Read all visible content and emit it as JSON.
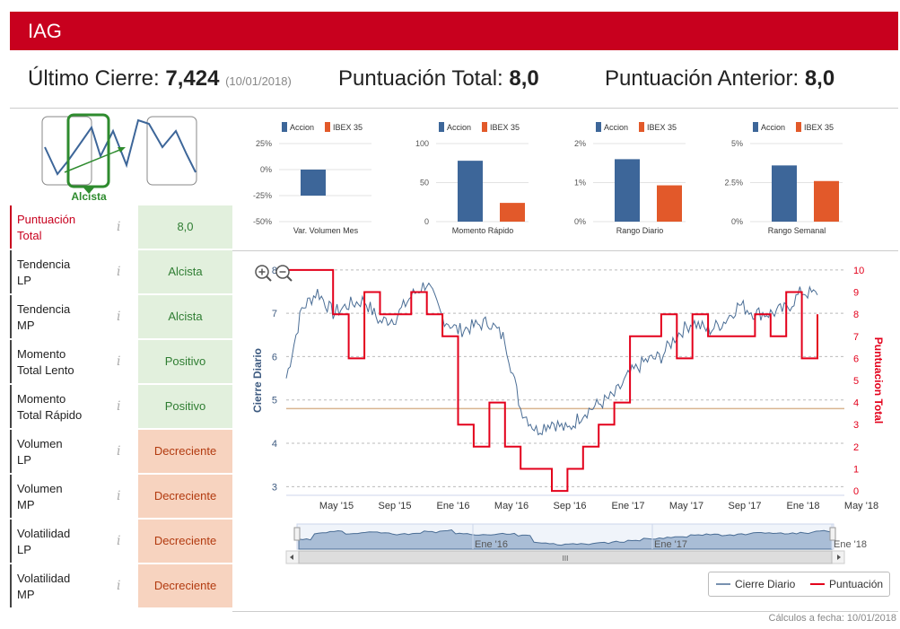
{
  "header": {
    "title": "IAG"
  },
  "summary": {
    "last_close_label": "Último Cierre:",
    "last_close_value": "7,424",
    "last_close_date": "(10/01/2018)",
    "total_score_label": "Puntuación Total:",
    "total_score_value": "8,0",
    "prev_score_label": "Puntuación Anterior:",
    "prev_score_value": "8,0"
  },
  "trend": {
    "label": "Alcista"
  },
  "rows": [
    {
      "label1": "Puntuación",
      "label2": "Total",
      "value": "8,0",
      "info": "i"
    },
    {
      "label1": "Tendencia",
      "label2": "LP",
      "value": "Alcista",
      "info": "i"
    },
    {
      "label1": "Tendencia",
      "label2": "MP",
      "value": "Alcista",
      "info": "i"
    },
    {
      "label1": "Momento",
      "label2": "Total Lento",
      "value": "Positivo",
      "info": "i"
    },
    {
      "label1": "Momento",
      "label2": "Total Rápido",
      "value": "Positivo",
      "info": "i"
    },
    {
      "label1": "Volumen",
      "label2": "LP",
      "value": "Decreciente",
      "info": "i"
    },
    {
      "label1": "Volumen",
      "label2": "MP",
      "value": "Decreciente",
      "info": "i"
    },
    {
      "label1": "Volatilidad",
      "label2": "LP",
      "value": "Decreciente",
      "info": "i"
    },
    {
      "label1": "Volatilidad",
      "label2": "MP",
      "value": "Decreciente",
      "info": "i"
    }
  ],
  "colors": {
    "accion": "#3d6699",
    "ibex": "#e2592a",
    "brand": "#c8001e",
    "price": "#4a6d95",
    "score": "#e3001b",
    "threshold": "#d9b48f"
  },
  "chart_data": [
    {
      "type": "bar",
      "title": "Var. Volumen Mes",
      "legend": [
        "Accion",
        "IBEX 35"
      ],
      "series": [
        {
          "name": "Accion",
          "values": [
            -25
          ]
        },
        {
          "name": "IBEX 35",
          "values": [
            null
          ]
        }
      ],
      "yticks": [
        "25%",
        "0%",
        "-25%",
        "-50%"
      ],
      "ylim": [
        -50,
        25
      ]
    },
    {
      "type": "bar",
      "title": "Momento Rápido",
      "legend": [
        "Accion",
        "IBEX 35"
      ],
      "series": [
        {
          "name": "Accion",
          "values": [
            78
          ]
        },
        {
          "name": "IBEX 35",
          "values": [
            24
          ]
        }
      ],
      "yticks": [
        "100",
        "50",
        "0"
      ],
      "ylim": [
        0,
        100
      ]
    },
    {
      "type": "bar",
      "title": "Rango Diario",
      "legend": [
        "Accion",
        "IBEX 35"
      ],
      "series": [
        {
          "name": "Accion",
          "values": [
            1.6
          ]
        },
        {
          "name": "IBEX 35",
          "values": [
            0.93
          ]
        }
      ],
      "yticks": [
        "2%",
        "1%",
        "0%"
      ],
      "ylim": [
        0,
        2
      ]
    },
    {
      "type": "bar",
      "title": "Rango Semanal",
      "legend": [
        "Accion",
        "IBEX 35"
      ],
      "series": [
        {
          "name": "Accion",
          "values": [
            3.6
          ]
        },
        {
          "name": "IBEX 35",
          "values": [
            2.6
          ]
        }
      ],
      "yticks": [
        "5%",
        "2.5%",
        "0%"
      ],
      "ylim": [
        0,
        5
      ]
    },
    {
      "type": "line",
      "title": "",
      "x": [
        "2015-03",
        "2015-04",
        "2015-05",
        "2015-06",
        "2015-07",
        "2015-08",
        "2015-09",
        "2015-10",
        "2015-11",
        "2015-12",
        "2016-01",
        "2016-02",
        "2016-03",
        "2016-04",
        "2016-05",
        "2016-06",
        "2016-07",
        "2016-08",
        "2016-09",
        "2016-10",
        "2016-11",
        "2016-12",
        "2017-01",
        "2017-02",
        "2017-03",
        "2017-04",
        "2017-05",
        "2017-06",
        "2017-07",
        "2017-08",
        "2017-09",
        "2017-10",
        "2017-11",
        "2017-12",
        "2018-01"
      ],
      "series": [
        {
          "name": "Cierre Diario",
          "axis": "left",
          "values": [
            5.5,
            7.1,
            7.5,
            7.0,
            7.2,
            7.3,
            6.8,
            6.9,
            7.4,
            7.7,
            6.9,
            6.6,
            6.7,
            6.8,
            6.4,
            4.8,
            4.3,
            4.5,
            4.3,
            4.7,
            4.9,
            5.1,
            5.6,
            5.9,
            6.0,
            6.5,
            6.8,
            6.6,
            6.8,
            7.2,
            7.0,
            7.0,
            7.1,
            7.5,
            7.42
          ]
        },
        {
          "name": "Puntuación",
          "axis": "right",
          "values": [
            10,
            10,
            10,
            8,
            6,
            9,
            8,
            8,
            9,
            8,
            7,
            3,
            2,
            4,
            2,
            1,
            1,
            0,
            1,
            2,
            3,
            4,
            7,
            7,
            8,
            6,
            8,
            7,
            7,
            7,
            8,
            7,
            9,
            6,
            8
          ]
        }
      ],
      "threshold": 4.8,
      "xticks": [
        "May '15",
        "Sep '15",
        "Ene '16",
        "May '16",
        "Sep '16",
        "Ene '17",
        "May '17",
        "Sep '17",
        "Ene '18",
        "May '18"
      ],
      "yticks_left": [
        3,
        4,
        5,
        6,
        7,
        8
      ],
      "yticks_right": [
        0,
        1,
        2,
        3,
        4,
        5,
        6,
        7,
        8,
        9,
        10
      ],
      "ylabel_left": "Cierre Diario",
      "ylabel_right": "Puntuacion Total",
      "ylim_left": [
        2.8,
        8.1
      ],
      "ylim_right": [
        -0.2,
        10.2
      ],
      "navigator_ticks": [
        "Ene '16",
        "Ene '17",
        "Ene '18"
      ],
      "legend": [
        "Cierre Diario",
        "Puntuación"
      ]
    }
  ],
  "footer": {
    "text": "Cálculos a fecha: 10/01/2018"
  },
  "controls": {
    "scroll_thumb": "III"
  }
}
